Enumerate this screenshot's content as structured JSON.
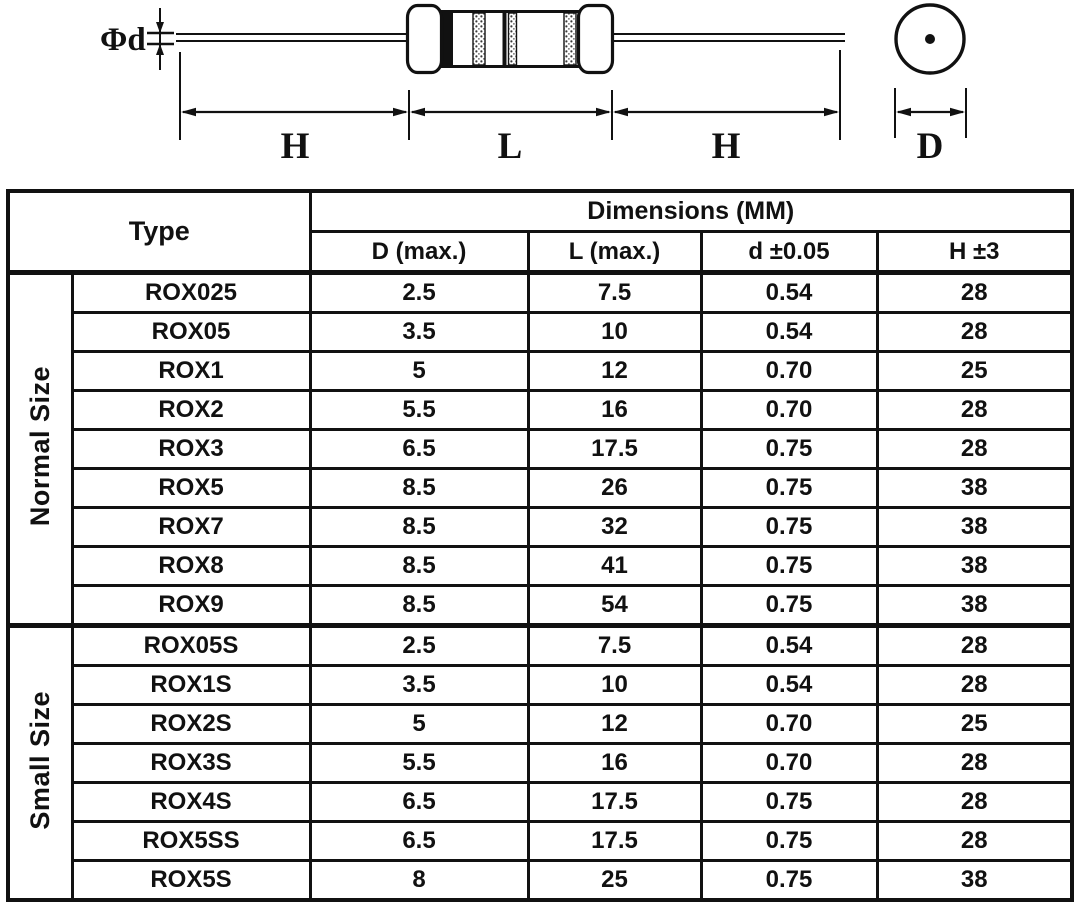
{
  "diagram": {
    "lead_diameter_label": "Φd",
    "left_lead_label": "H",
    "body_length_label": "L",
    "right_lead_label": "H",
    "end_view_diameter_label": "D"
  },
  "table": {
    "type_header": "Type",
    "dimensions_header": "Dimensions (MM)",
    "column_headers": [
      "D (max.)",
      "L (max.)",
      "d ±0.05",
      "H ±3"
    ],
    "groups": [
      {
        "label": "Normal Size",
        "rows": [
          {
            "type": "ROX025",
            "d_max": "2.5",
            "l_max": "7.5",
            "d_tol": "0.54",
            "h_tol": "28"
          },
          {
            "type": "ROX05",
            "d_max": "3.5",
            "l_max": "10",
            "d_tol": "0.54",
            "h_tol": "28"
          },
          {
            "type": "ROX1",
            "d_max": "5",
            "l_max": "12",
            "d_tol": "0.70",
            "h_tol": "25"
          },
          {
            "type": "ROX2",
            "d_max": "5.5",
            "l_max": "16",
            "d_tol": "0.70",
            "h_tol": "28"
          },
          {
            "type": "ROX3",
            "d_max": "6.5",
            "l_max": "17.5",
            "d_tol": "0.75",
            "h_tol": "28"
          },
          {
            "type": "ROX5",
            "d_max": "8.5",
            "l_max": "26",
            "d_tol": "0.75",
            "h_tol": "38"
          },
          {
            "type": "ROX7",
            "d_max": "8.5",
            "l_max": "32",
            "d_tol": "0.75",
            "h_tol": "38"
          },
          {
            "type": "ROX8",
            "d_max": "8.5",
            "l_max": "41",
            "d_tol": "0.75",
            "h_tol": "38"
          },
          {
            "type": "ROX9",
            "d_max": "8.5",
            "l_max": "54",
            "d_tol": "0.75",
            "h_tol": "38"
          }
        ]
      },
      {
        "label": "Small Size",
        "rows": [
          {
            "type": "ROX05S",
            "d_max": "2.5",
            "l_max": "7.5",
            "d_tol": "0.54",
            "h_tol": "28"
          },
          {
            "type": "ROX1S",
            "d_max": "3.5",
            "l_max": "10",
            "d_tol": "0.54",
            "h_tol": "28"
          },
          {
            "type": "ROX2S",
            "d_max": "5",
            "l_max": "12",
            "d_tol": "0.70",
            "h_tol": "25"
          },
          {
            "type": "ROX3S",
            "d_max": "5.5",
            "l_max": "16",
            "d_tol": "0.70",
            "h_tol": "28"
          },
          {
            "type": "ROX4S",
            "d_max": "6.5",
            "l_max": "17.5",
            "d_tol": "0.75",
            "h_tol": "28"
          },
          {
            "type": "ROX5SS",
            "d_max": "6.5",
            "l_max": "17.5",
            "d_tol": "0.75",
            "h_tol": "28"
          },
          {
            "type": "ROX5S",
            "d_max": "8",
            "l_max": "25",
            "d_tol": "0.75",
            "h_tol": "38"
          }
        ]
      }
    ]
  },
  "colors": {
    "ink": "#111111",
    "background": "#ffffff"
  }
}
